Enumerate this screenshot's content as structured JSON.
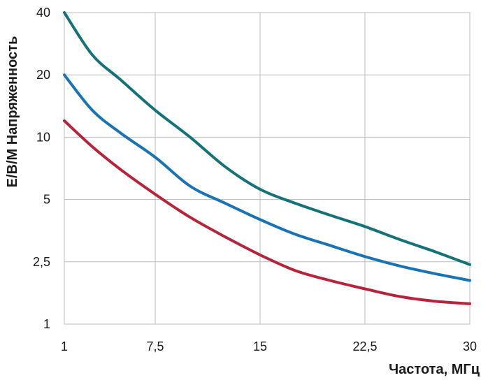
{
  "chart_data": {
    "type": "line",
    "title": "",
    "xlabel": "Частота, МГц",
    "ylabel": "Е/В/М Напряженность",
    "x_ticks": [
      1,
      7.5,
      15,
      22.5,
      30
    ],
    "x_tick_labels": [
      "1",
      "7,5",
      "15",
      "22,5",
      "30"
    ],
    "xlim": [
      1,
      30
    ],
    "y_ticks": [
      1,
      2.5,
      5,
      10,
      20,
      40
    ],
    "y_tick_labels": [
      "1",
      "2,5",
      "5",
      "10",
      "20",
      "40"
    ],
    "y_scale": "custom (equal spacing between ticks)",
    "ylim": [
      1,
      40
    ],
    "grid": true,
    "legend": "none",
    "series": [
      {
        "color": "#157377",
        "x": [
          1,
          3,
          5,
          7.5,
          10,
          12.5,
          15,
          17.5,
          20,
          22.5,
          25,
          27.5,
          30
        ],
        "y": [
          40,
          25,
          19,
          13.5,
          10,
          7.2,
          5.6,
          4.8,
          4.2,
          3.7,
          3.2,
          2.8,
          2.4
        ]
      },
      {
        "color": "#1a73b4",
        "x": [
          1,
          3,
          5,
          7.5,
          10,
          12.5,
          15,
          17.5,
          20,
          22.5,
          25,
          27.5,
          30
        ],
        "y": [
          20,
          13.5,
          10.5,
          8,
          5.8,
          4.8,
          4,
          3.4,
          3,
          2.65,
          2.35,
          2.1,
          1.9
        ]
      },
      {
        "color": "#b5243a",
        "x": [
          1,
          3,
          5,
          7.5,
          10,
          12.5,
          15,
          17.5,
          20,
          22.5,
          25,
          27.5,
          30
        ],
        "y": [
          12,
          9,
          7,
          5.3,
          4.1,
          3.3,
          2.7,
          2.2,
          1.9,
          1.68,
          1.5,
          1.4,
          1.35
        ]
      }
    ]
  }
}
